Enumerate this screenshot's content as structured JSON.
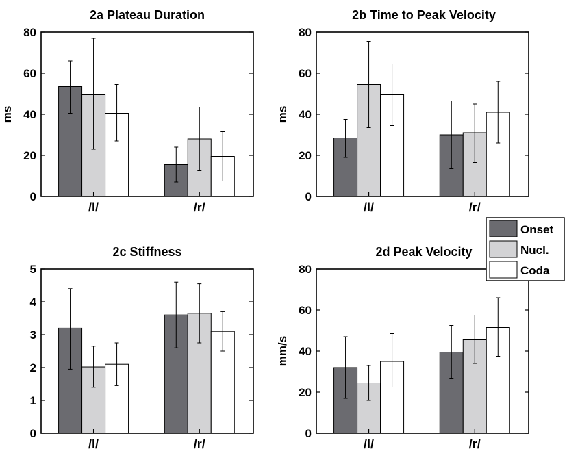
{
  "colors": {
    "onset": "#6b6b70",
    "nucl": "#d3d3d5",
    "coda": "#ffffff",
    "axis": "#000000"
  },
  "legend": {
    "placement": "between right-hand panels",
    "items": [
      {
        "label": "Onset",
        "color": "#6b6b70"
      },
      {
        "label": "Nucl.",
        "color": "#d3d3d5"
      },
      {
        "label": "Coda",
        "color": "#ffffff"
      }
    ]
  },
  "chart_data": [
    {
      "type": "bar",
      "title": "2a Plateau Duration",
      "ylabel": "ms",
      "xlabel": "",
      "ylim": [
        0,
        80
      ],
      "yticks": [
        0,
        20,
        40,
        60,
        80
      ],
      "categories": [
        "/l/",
        "/r/"
      ],
      "grid": false,
      "series": [
        {
          "name": "Onset",
          "values": [
            53.5,
            15.5
          ],
          "err_lo": [
            40.5,
            7
          ],
          "err_hi": [
            66,
            24
          ]
        },
        {
          "name": "Nucl.",
          "values": [
            49.5,
            28
          ],
          "err_lo": [
            23,
            12.5
          ],
          "err_hi": [
            77,
            43.5
          ]
        },
        {
          "name": "Coda",
          "values": [
            40.5,
            19.5
          ],
          "err_lo": [
            27,
            7.5
          ],
          "err_hi": [
            54.5,
            31.5
          ]
        }
      ]
    },
    {
      "type": "bar",
      "title": "2b Time to Peak Velocity",
      "ylabel": "ms",
      "xlabel": "",
      "ylim": [
        0,
        80
      ],
      "yticks": [
        0,
        20,
        40,
        60,
        80
      ],
      "categories": [
        "/l/",
        "/r/"
      ],
      "grid": false,
      "series": [
        {
          "name": "Onset",
          "values": [
            28.5,
            30
          ],
          "err_lo": [
            19,
            13.5
          ],
          "err_hi": [
            37.5,
            46.5
          ]
        },
        {
          "name": "Nucl.",
          "values": [
            54.5,
            31
          ],
          "err_lo": [
            33.5,
            16.5
          ],
          "err_hi": [
            75.5,
            45
          ]
        },
        {
          "name": "Coda",
          "values": [
            49.5,
            41
          ],
          "err_lo": [
            34.5,
            26
          ],
          "err_hi": [
            64.5,
            56
          ]
        }
      ]
    },
    {
      "type": "bar",
      "title": "2c Stiffness",
      "ylabel": "",
      "xlabel": "",
      "ylim": [
        0,
        5
      ],
      "yticks": [
        0,
        1,
        2,
        3,
        4,
        5
      ],
      "categories": [
        "/l/",
        "/r/"
      ],
      "grid": false,
      "series": [
        {
          "name": "Onset",
          "values": [
            3.2,
            3.6
          ],
          "err_lo": [
            1.95,
            2.6
          ],
          "err_hi": [
            4.4,
            4.6
          ]
        },
        {
          "name": "Nucl.",
          "values": [
            2.02,
            3.65
          ],
          "err_lo": [
            1.4,
            2.75
          ],
          "err_hi": [
            2.65,
            4.55
          ]
        },
        {
          "name": "Coda",
          "values": [
            2.1,
            3.1
          ],
          "err_lo": [
            1.45,
            2.5
          ],
          "err_hi": [
            2.75,
            3.7
          ]
        }
      ]
    },
    {
      "type": "bar",
      "title": "2d Peak Velocity",
      "ylabel": "mm/s",
      "xlabel": "",
      "ylim": [
        0,
        80
      ],
      "yticks": [
        0,
        20,
        40,
        60,
        80
      ],
      "categories": [
        "/l/",
        "/r/"
      ],
      "grid": false,
      "series": [
        {
          "name": "Onset",
          "values": [
            32,
            39.5
          ],
          "err_lo": [
            17,
            26.5
          ],
          "err_hi": [
            47,
            52.5
          ]
        },
        {
          "name": "Nucl.",
          "values": [
            24.5,
            45.5
          ],
          "err_lo": [
            16,
            34
          ],
          "err_hi": [
            33,
            57.5
          ]
        },
        {
          "name": "Coda",
          "values": [
            35,
            51.5
          ],
          "err_lo": [
            22.5,
            37.5
          ],
          "err_hi": [
            48.5,
            66
          ]
        }
      ]
    }
  ]
}
